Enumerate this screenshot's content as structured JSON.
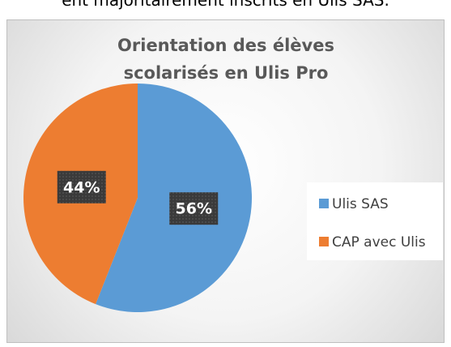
{
  "caption_above": "ent majoritairement inscrits en Ulis SAS.",
  "chart_data": {
    "type": "pie",
    "title": "Orientation des élèves scolarisés en Ulis Pro",
    "categories": [
      "Ulis SAS",
      "CAP avec Ulis"
    ],
    "values": [
      56,
      44
    ],
    "value_labels": [
      "56%",
      "44%"
    ],
    "colors": [
      "#5b9bd5",
      "#ed7d31"
    ],
    "legend": "right"
  }
}
